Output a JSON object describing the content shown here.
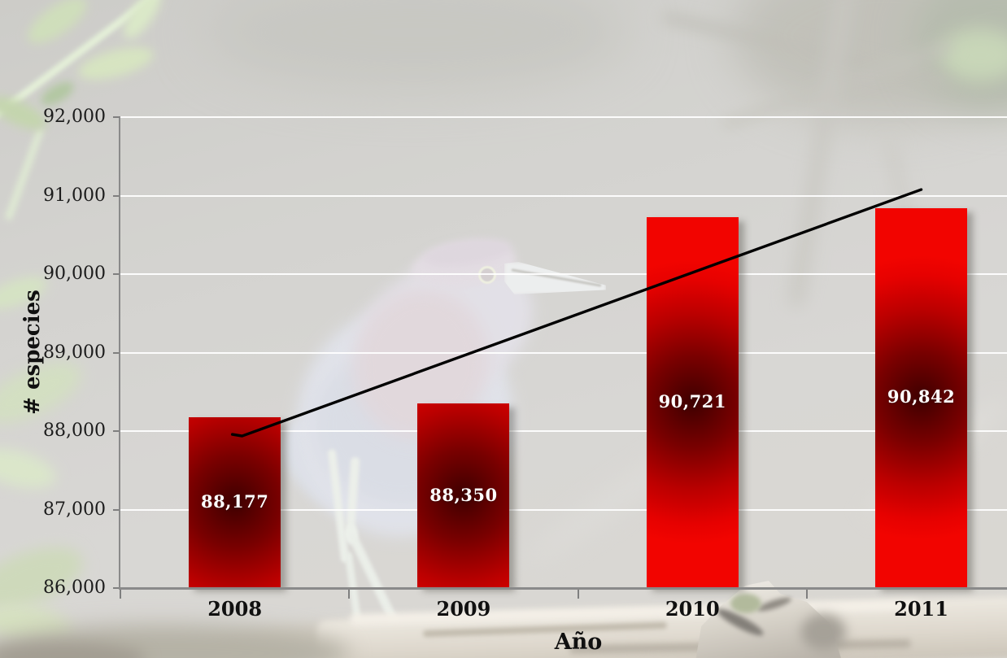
{
  "background_photo_alt": "Heavily faded photograph of a little blue heron standing on a log with green foliage",
  "chart_data": {
    "type": "bar",
    "title": "",
    "categories": [
      "2008",
      "2009",
      "2010",
      "2011"
    ],
    "values": [
      88177,
      88350,
      90721,
      90842
    ],
    "value_labels": [
      "88,177",
      "88,350",
      "90,721",
      "90,842"
    ],
    "xlabel": "Año",
    "ylabel": "# especies",
    "ylim": [
      86000,
      92000
    ],
    "ytick_step": 1000,
    "yticks": [
      {
        "value": 86000,
        "label": "86,000"
      },
      {
        "value": 87000,
        "label": "87,000"
      },
      {
        "value": 88000,
        "label": "88,000"
      },
      {
        "value": 89000,
        "label": "89,000"
      },
      {
        "value": 90000,
        "label": "90,000"
      },
      {
        "value": 91000,
        "label": "91,000"
      },
      {
        "value": 92000,
        "label": "92,000"
      }
    ],
    "grid": true,
    "legend": null,
    "bar_fill_edge_color": "#f20400",
    "bar_fill_center_color": "#3e0000",
    "bar_label_color": "#ffffff",
    "gridline_color": "#ffffff",
    "axis_color": "#8a8a8a",
    "text_color": "#101010",
    "trendline": {
      "type": "linear",
      "start_value": 87968,
      "end_value": 91077,
      "color": "#000000"
    }
  }
}
